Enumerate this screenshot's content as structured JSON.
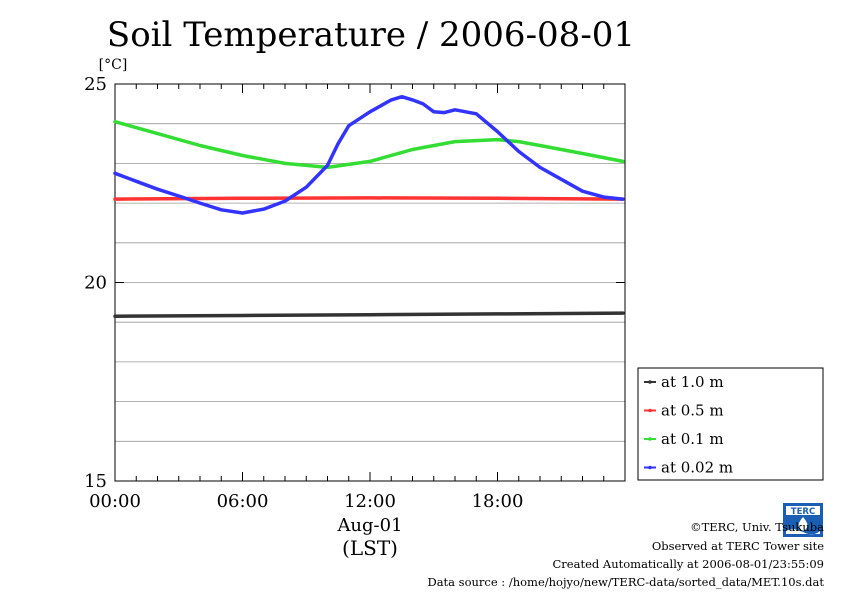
{
  "chart_data": {
    "type": "line",
    "title": "Soil Temperature / 2006-08-01",
    "ylabel": "[°C]",
    "ylim": [
      15,
      25
    ],
    "xlim": [
      0,
      24
    ],
    "yticks": [
      {
        "value": 15,
        "label": "15"
      },
      {
        "value": 20,
        "label": "20"
      },
      {
        "value": 25,
        "label": "25"
      }
    ],
    "xticks": [
      {
        "value": 0,
        "label": "00:00"
      },
      {
        "value": 6,
        "label": "06:00"
      },
      {
        "value": 12,
        "label": "12:00"
      },
      {
        "value": 18,
        "label": "18:00"
      }
    ],
    "xlabel_date": "Aug-01",
    "xlabel_unit": "(LST)",
    "grid": true,
    "legend_position": "right-bottom",
    "series": [
      {
        "name": "at 1.0 m",
        "color": "#333333",
        "points": [
          [
            0,
            19.15
          ],
          [
            6,
            19.17
          ],
          [
            12,
            19.19
          ],
          [
            18,
            19.21
          ],
          [
            23.9,
            19.23
          ]
        ]
      },
      {
        "name": "at 0.5 m",
        "color": "#ff3333",
        "points": [
          [
            0,
            22.1
          ],
          [
            6,
            22.12
          ],
          [
            12,
            22.13
          ],
          [
            18,
            22.12
          ],
          [
            23.9,
            22.1
          ]
        ]
      },
      {
        "name": "at 0.1 m",
        "color": "#33dd33",
        "points": [
          [
            0,
            24.05
          ],
          [
            2,
            23.75
          ],
          [
            4,
            23.45
          ],
          [
            6,
            23.2
          ],
          [
            8,
            23.0
          ],
          [
            10,
            22.9
          ],
          [
            12,
            23.05
          ],
          [
            14,
            23.35
          ],
          [
            16,
            23.55
          ],
          [
            18,
            23.6
          ],
          [
            19,
            23.55
          ],
          [
            20,
            23.45
          ],
          [
            22,
            23.25
          ],
          [
            23.9,
            23.05
          ]
        ]
      },
      {
        "name": "at 0.02 m",
        "color": "#3333ff",
        "points": [
          [
            0,
            22.75
          ],
          [
            1,
            22.55
          ],
          [
            2,
            22.35
          ],
          [
            3,
            22.18
          ],
          [
            4,
            22.0
          ],
          [
            5,
            21.83
          ],
          [
            6,
            21.75
          ],
          [
            7,
            21.85
          ],
          [
            8,
            22.05
          ],
          [
            9,
            22.4
          ],
          [
            10,
            22.95
          ],
          [
            10.5,
            23.5
          ],
          [
            11,
            23.95
          ],
          [
            12,
            24.3
          ],
          [
            13,
            24.6
          ],
          [
            13.5,
            24.68
          ],
          [
            14,
            24.6
          ],
          [
            14.5,
            24.5
          ],
          [
            15,
            24.3
          ],
          [
            15.5,
            24.28
          ],
          [
            16,
            24.35
          ],
          [
            17,
            24.25
          ],
          [
            18,
            23.8
          ],
          [
            19,
            23.3
          ],
          [
            20,
            22.9
          ],
          [
            21,
            22.6
          ],
          [
            22,
            22.3
          ],
          [
            23,
            22.15
          ],
          [
            23.9,
            22.1
          ]
        ]
      }
    ]
  },
  "footer": {
    "copyright": "©TERC, Univ. Tsukuba",
    "observed": "Observed at TERC Tower site",
    "created": "Created Automatically at 2006-08-01/23:55:09",
    "source": "Data source : /home/hojyo/new/TERC-data/sorted_data/MET.10s.dat"
  },
  "logo": {
    "text": "TERC",
    "color": "#1a5fb4"
  }
}
